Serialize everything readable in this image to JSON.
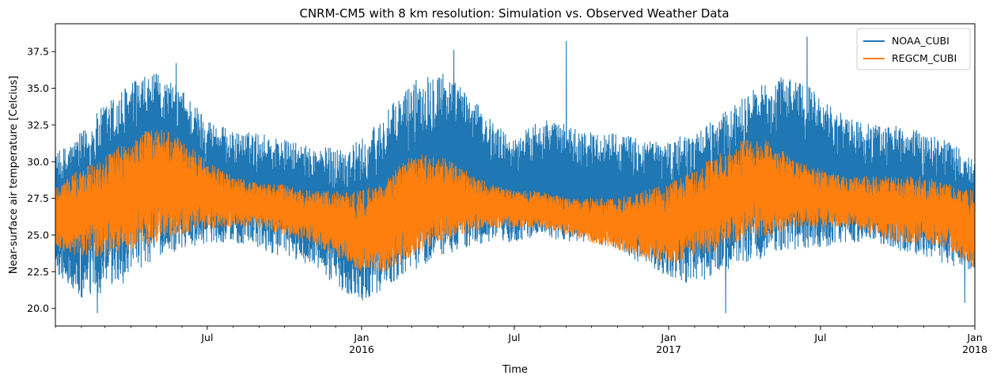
{
  "chart_data": {
    "type": "line",
    "title": "CNRM-CM5 with 8 km resolution: Simulation vs. Observed Weather Data",
    "xlabel": "Time",
    "ylabel": "Near-surface air temperature [Celcius]",
    "xlim": [
      "2015-01-01",
      "2018-01-01"
    ],
    "ylim": [
      18.8,
      39.4
    ],
    "x_ticks": [
      {
        "date": "2015-07-01",
        "label": "Jul",
        "sublabel": ""
      },
      {
        "date": "2016-01-01",
        "label": "Jan",
        "sublabel": "2016"
      },
      {
        "date": "2016-07-01",
        "label": "Jul",
        "sublabel": ""
      },
      {
        "date": "2017-01-01",
        "label": "Jan",
        "sublabel": "2017"
      },
      {
        "date": "2017-07-01",
        "label": "Jul",
        "sublabel": ""
      },
      {
        "date": "2018-01-01",
        "label": "Jan",
        "sublabel": "2018"
      }
    ],
    "y_ticks": [
      {
        "value": 20.0,
        "label": "20.0"
      },
      {
        "value": 22.5,
        "label": "22.5"
      },
      {
        "value": 25.0,
        "label": "25.0"
      },
      {
        "value": 27.5,
        "label": "27.5"
      },
      {
        "value": 30.0,
        "label": "30.0"
      },
      {
        "value": 32.5,
        "label": "32.5"
      },
      {
        "value": 35.0,
        "label": "35.0"
      },
      {
        "value": 37.5,
        "label": "37.5"
      }
    ],
    "legend_position": "top-right",
    "grid": false,
    "series": [
      {
        "name": "NOAA_CUBI",
        "color": "#1f77b4",
        "x": [
          "2015-01-01",
          "2015-02-01",
          "2015-03-01",
          "2015-04-01",
          "2015-05-01",
          "2015-06-01",
          "2015-07-01",
          "2015-08-01",
          "2015-09-01",
          "2015-10-01",
          "2015-11-01",
          "2015-12-01",
          "2016-01-01",
          "2016-02-01",
          "2016-03-01",
          "2016-04-01",
          "2016-05-01",
          "2016-06-01",
          "2016-07-01",
          "2016-08-01",
          "2016-09-01",
          "2016-10-01",
          "2016-11-01",
          "2016-12-01",
          "2017-01-01",
          "2017-02-01",
          "2017-03-01",
          "2017-04-01",
          "2017-05-01",
          "2017-06-01",
          "2017-07-01",
          "2017-08-01",
          "2017-09-01",
          "2017-10-01",
          "2017-11-01",
          "2017-12-01",
          "2018-01-01"
        ],
        "low": [
          22.5,
          20.5,
          21.0,
          22.0,
          23.5,
          24.0,
          24.5,
          24.5,
          24.0,
          23.5,
          23.0,
          21.5,
          20.5,
          21.5,
          22.5,
          23.5,
          24.0,
          24.5,
          24.5,
          25.0,
          24.5,
          24.5,
          24.0,
          23.0,
          22.0,
          21.5,
          22.5,
          23.0,
          23.5,
          24.0,
          24.0,
          24.5,
          24.5,
          24.0,
          23.5,
          23.0,
          22.5
        ],
        "high": [
          30.5,
          32.0,
          34.0,
          35.5,
          36.0,
          35.0,
          33.0,
          32.0,
          32.0,
          31.5,
          31.0,
          31.0,
          31.5,
          33.5,
          35.5,
          36.5,
          35.0,
          33.0,
          31.5,
          33.0,
          32.5,
          32.0,
          32.0,
          31.5,
          31.5,
          32.0,
          33.0,
          34.5,
          35.5,
          36.0,
          34.5,
          33.0,
          32.5,
          32.5,
          32.0,
          31.5,
          30.0
        ],
        "spikes": [
          {
            "date": "2015-05-25",
            "value": 36.7
          },
          {
            "date": "2016-04-20",
            "value": 37.6
          },
          {
            "date": "2016-09-01",
            "value": 38.2
          },
          {
            "date": "2017-06-15",
            "value": 38.5
          },
          {
            "date": "2015-02-20",
            "value": 19.7
          },
          {
            "date": "2017-03-10",
            "value": 19.7
          },
          {
            "date": "2017-12-20",
            "value": 20.4
          }
        ]
      },
      {
        "name": "REGCM_CUBI",
        "color": "#ff7f0e",
        "x": [
          "2015-01-01",
          "2015-02-01",
          "2015-03-01",
          "2015-04-01",
          "2015-05-01",
          "2015-06-01",
          "2015-07-01",
          "2015-08-01",
          "2015-09-01",
          "2015-10-01",
          "2015-11-01",
          "2015-12-01",
          "2016-01-01",
          "2016-02-01",
          "2016-03-01",
          "2016-04-01",
          "2016-05-01",
          "2016-06-01",
          "2016-07-01",
          "2016-08-01",
          "2016-09-01",
          "2016-10-01",
          "2016-11-01",
          "2016-12-01",
          "2017-01-01",
          "2017-02-01",
          "2017-03-01",
          "2017-04-01",
          "2017-05-01",
          "2017-06-01",
          "2017-07-01",
          "2017-08-01",
          "2017-09-01",
          "2017-10-01",
          "2017-11-01",
          "2017-12-01",
          "2018-01-01"
        ],
        "low": [
          24.0,
          23.5,
          23.5,
          24.0,
          24.5,
          25.0,
          25.5,
          25.5,
          25.5,
          25.0,
          24.5,
          23.5,
          22.5,
          22.5,
          23.5,
          24.5,
          25.0,
          25.5,
          25.5,
          25.5,
          25.0,
          24.5,
          24.0,
          23.5,
          23.0,
          23.5,
          24.0,
          24.5,
          25.0,
          25.5,
          25.5,
          25.5,
          25.0,
          24.5,
          24.5,
          24.0,
          22.5
        ],
        "high": [
          28.5,
          29.5,
          30.5,
          31.5,
          32.5,
          31.5,
          30.0,
          29.0,
          28.5,
          28.5,
          28.0,
          28.0,
          28.0,
          29.0,
          30.5,
          30.5,
          29.5,
          28.5,
          28.0,
          28.0,
          27.5,
          27.5,
          27.5,
          28.0,
          28.5,
          29.5,
          30.5,
          31.5,
          31.5,
          30.0,
          29.5,
          29.0,
          29.0,
          29.0,
          29.0,
          28.5,
          28.0
        ]
      }
    ]
  }
}
